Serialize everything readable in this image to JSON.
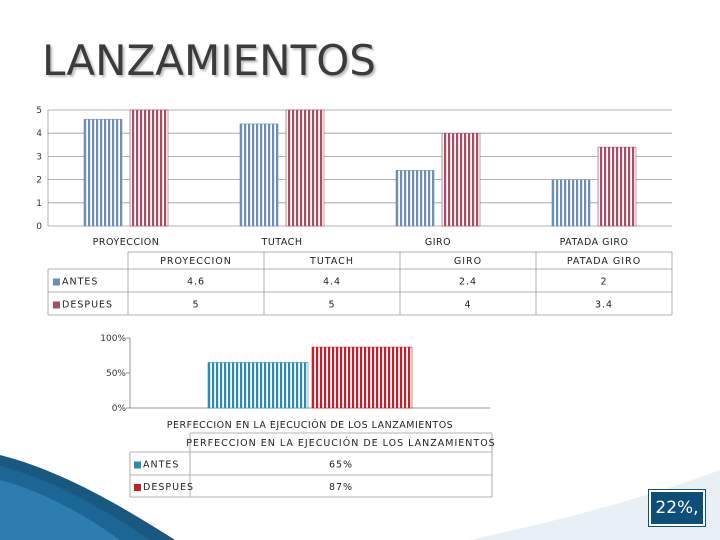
{
  "title": "LANZAMIENTOS",
  "badge": "22%,",
  "colors": {
    "antes": "#6e8fb4",
    "despues": "#a94d62",
    "antes2": "#2a8db0",
    "despues2": "#c41e2a",
    "accent": "#0d4f79"
  },
  "chart_data": [
    {
      "type": "bar",
      "categories": [
        "PROYECCION",
        "TUTACH",
        "GIRO",
        "PATADA GIRO"
      ],
      "series": [
        {
          "name": "ANTES",
          "values": [
            4.6,
            4.4,
            2.4,
            2
          ]
        },
        {
          "name": "DESPUES",
          "values": [
            5,
            5,
            4,
            3.4
          ]
        }
      ],
      "yticks": [
        "0",
        "1",
        "2",
        "3",
        "4",
        "5"
      ],
      "ylim": [
        0,
        5
      ],
      "grid": true,
      "table": {
        "headers": [
          "PROYECCION",
          "TUTACH",
          "GIRO",
          "PATADA GIRO"
        ],
        "rows": [
          {
            "name": "ANTES",
            "values": [
              "4.6",
              "4.4",
              "2.4",
              "2"
            ]
          },
          {
            "name": "DESPUES",
            "values": [
              "5",
              "5",
              "4",
              "3.4"
            ]
          }
        ]
      }
    },
    {
      "type": "bar",
      "categories": [
        "PERFECCION EN LA EJECUCIÓN DE LOS LANZAMIENTOS"
      ],
      "series": [
        {
          "name": "ANTES",
          "values": [
            0.65
          ]
        },
        {
          "name": "DESPUES",
          "values": [
            0.87
          ]
        }
      ],
      "yticks": [
        "100%",
        "50%",
        "0%"
      ],
      "ylim": [
        0,
        1
      ],
      "table": {
        "headers": [
          "PERFECCION EN LA EJECUCIÓN DE LOS LANZAMIENTOS"
        ],
        "rows": [
          {
            "name": "ANTES",
            "values": [
              "65%"
            ]
          },
          {
            "name": "DESPUES",
            "values": [
              "87%"
            ]
          }
        ]
      }
    }
  ]
}
